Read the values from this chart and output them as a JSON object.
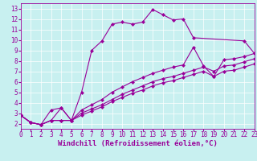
{
  "xlabel": "Windchill (Refroidissement éolien,°C)",
  "bg_color": "#c8f0f0",
  "line_color": "#990099",
  "grid_color": "#ffffff",
  "xlim": [
    0,
    23
  ],
  "ylim": [
    1.5,
    13.5
  ],
  "xticks": [
    0,
    1,
    2,
    3,
    4,
    5,
    6,
    7,
    8,
    9,
    10,
    11,
    12,
    13,
    14,
    15,
    16,
    17,
    18,
    19,
    20,
    21,
    22,
    23
  ],
  "yticks": [
    2,
    3,
    4,
    5,
    6,
    7,
    8,
    9,
    10,
    11,
    12,
    13
  ],
  "line1_x": [
    0,
    1,
    2,
    3,
    4,
    5,
    6,
    7,
    8,
    9,
    10,
    11,
    12,
    13,
    14,
    15,
    16,
    17,
    22,
    23
  ],
  "line1_y": [
    2.8,
    2.1,
    1.9,
    3.3,
    3.5,
    2.3,
    5.0,
    9.0,
    9.9,
    11.5,
    11.7,
    11.5,
    11.7,
    12.9,
    12.4,
    11.9,
    12.0,
    10.2,
    9.9,
    8.7
  ],
  "line2_x": [
    0,
    1,
    2,
    3,
    4,
    5,
    6,
    7,
    8,
    9,
    10,
    11,
    12,
    13,
    14,
    15,
    16,
    17,
    18,
    19,
    20,
    21,
    22,
    23
  ],
  "line2_y": [
    2.8,
    2.1,
    1.9,
    2.3,
    3.5,
    2.3,
    3.3,
    3.8,
    4.3,
    5.0,
    5.5,
    6.0,
    6.4,
    6.8,
    7.1,
    7.4,
    7.6,
    9.3,
    7.5,
    6.5,
    8.1,
    8.2,
    8.4,
    8.7
  ],
  "line3_x": [
    0,
    1,
    2,
    3,
    4,
    5,
    6,
    7,
    8,
    9,
    10,
    11,
    12,
    13,
    14,
    15,
    16,
    17,
    18,
    19,
    20,
    21,
    22,
    23
  ],
  "line3_y": [
    2.8,
    2.1,
    1.9,
    2.3,
    2.3,
    2.3,
    3.0,
    3.4,
    3.8,
    4.3,
    4.8,
    5.2,
    5.6,
    6.0,
    6.3,
    6.5,
    6.8,
    7.1,
    7.4,
    7.0,
    7.5,
    7.6,
    7.9,
    8.2
  ],
  "line4_x": [
    0,
    1,
    2,
    3,
    4,
    5,
    6,
    7,
    8,
    9,
    10,
    11,
    12,
    13,
    14,
    15,
    16,
    17,
    18,
    19,
    20,
    21,
    22,
    23
  ],
  "line4_y": [
    2.8,
    2.1,
    1.9,
    2.3,
    2.3,
    2.3,
    2.8,
    3.2,
    3.6,
    4.1,
    4.5,
    4.9,
    5.2,
    5.6,
    5.9,
    6.1,
    6.4,
    6.7,
    7.0,
    6.5,
    7.0,
    7.1,
    7.4,
    7.7
  ],
  "markersize": 2.5,
  "linewidth": 0.8,
  "xlabel_fontsize": 6.5,
  "tick_fontsize": 5.5
}
